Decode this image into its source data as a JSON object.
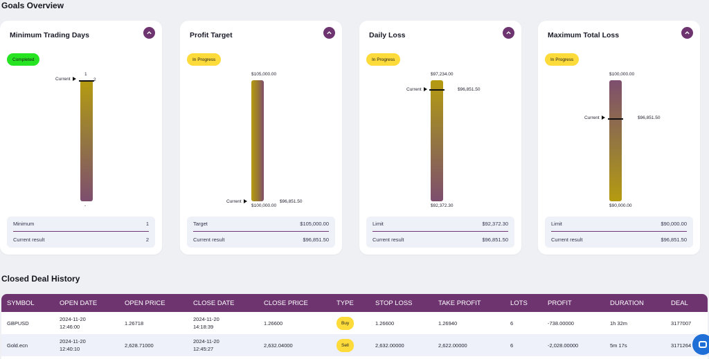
{
  "goals": {
    "title": "Goals Overview",
    "cards": [
      {
        "title": "Minimum Trading Days",
        "status": "Completed",
        "top_label": "1",
        "bottom_label": "-",
        "current_label": "Current",
        "current_value": "2",
        "rows": [
          {
            "label": "Minimum",
            "value": "1"
          },
          {
            "label": "Current result",
            "value": "2"
          }
        ]
      },
      {
        "title": "Profit Target",
        "status": "In Progress",
        "top_label": "$105,000.00",
        "bottom_label": "$100,000.00",
        "current_label": "Current",
        "current_value": "$96,851.50",
        "rows": [
          {
            "label": "Target",
            "value": "$105,000.00"
          },
          {
            "label": "Current result",
            "value": "$96,851.50"
          }
        ]
      },
      {
        "title": "Daily Loss",
        "status": "In Progress",
        "top_label": "$97,234.00",
        "bottom_label": "$92,372.30",
        "current_label": "Current",
        "current_value": "$96,851.50",
        "rows": [
          {
            "label": "Limit",
            "value": "$92,372.30"
          },
          {
            "label": "Current result",
            "value": "$96,851.50"
          }
        ]
      },
      {
        "title": "Maximum Total Loss",
        "status": "In Progress",
        "top_label": "$100,000.00",
        "bottom_label": "$90,000.00",
        "current_label": "Current",
        "current_value": "$96,851.50",
        "rows": [
          {
            "label": "Limit",
            "value": "$90,000.00"
          },
          {
            "label": "Current result",
            "value": "$96,851.50"
          }
        ]
      }
    ]
  },
  "history": {
    "title": "Closed Deal History",
    "columns": [
      "SYMBOL",
      "OPEN DATE",
      "OPEN PRICE",
      "CLOSE DATE",
      "CLOSE PRICE",
      "TYPE",
      "STOP LOSS",
      "TAKE PROFIT",
      "LOTS",
      "PROFIT",
      "DURATION",
      "DEAL"
    ],
    "rows": [
      {
        "symbol": "GBPUSD",
        "open_date": "2024-11-20",
        "open_time": "12:46:00",
        "open_price": "1.26718",
        "close_date": "2024-11-20",
        "close_time": "14:18:39",
        "close_price": "1.26600",
        "type": "Buy",
        "stop_loss": "1.26600",
        "take_profit": "1.26940",
        "lots": "6",
        "profit": "-738.00000",
        "duration": "1h 32m",
        "deal": "3177007"
      },
      {
        "symbol": "Gold.ecn",
        "open_date": "2024-11-20",
        "open_time": "12:40:10",
        "open_price": "2,628.71000",
        "close_date": "2024-11-20",
        "close_time": "12:45:27",
        "close_price": "2,632.04000",
        "type": "Sell",
        "stop_loss": "2,632.00000",
        "take_profit": "2,622.00000",
        "lots": "6",
        "profit": "-2,028.00000",
        "duration": "5m 17s",
        "deal": "3171264"
      }
    ]
  },
  "colors": {
    "accent": "#6d3470",
    "completed": "#27e423",
    "in_progress": "#fddb3a",
    "gauge_gold": "#b59b10",
    "gauge_purple": "#7e4e6e"
  },
  "icons": {
    "collapse": "chevron-up-icon",
    "chat": "chat-icon"
  }
}
